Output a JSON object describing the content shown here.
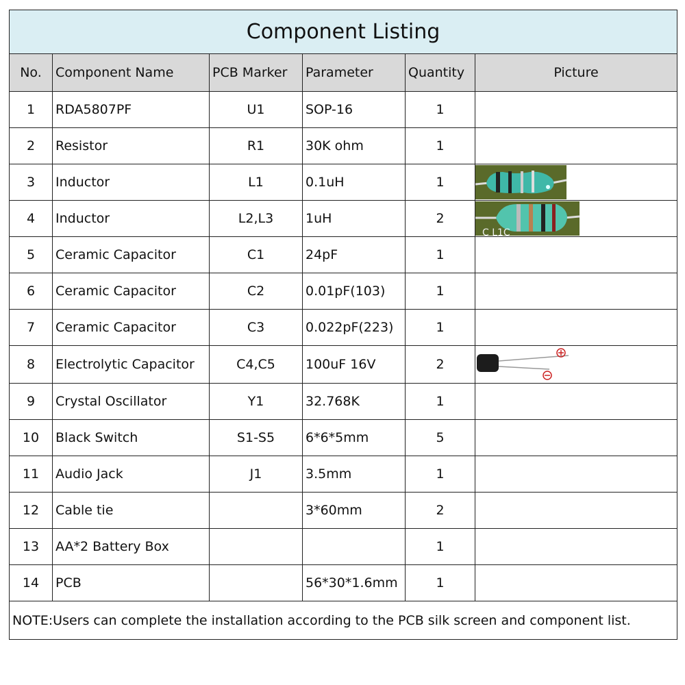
{
  "title": "Component Listing",
  "headers": [
    "No.",
    "Component Name",
    "PCB Marker",
    "Parameter",
    "Quantity",
    "Picture"
  ],
  "rows": [
    {
      "no": "1",
      "name": "RDA5807PF",
      "marker": "U1",
      "param": "SOP-16",
      "qty": "1",
      "picture": ""
    },
    {
      "no": "2",
      "name": "Resistor",
      "marker": "R1",
      "param": "30K ohm",
      "qty": "1",
      "picture": ""
    },
    {
      "no": "3",
      "name": "Inductor",
      "marker": "L1",
      "param": "0.1uH",
      "qty": "1",
      "picture": "inductor-photo"
    },
    {
      "no": "4",
      "name": "Inductor",
      "marker": "L2,L3",
      "param": "1uH",
      "qty": "2",
      "picture": "inductor-photo"
    },
    {
      "no": "5",
      "name": "Ceramic Capacitor",
      "marker": "C1",
      "param": "24pF",
      "qty": "1",
      "picture": ""
    },
    {
      "no": "6",
      "name": "Ceramic Capacitor",
      "marker": "C2",
      "param": "0.01pF(103)",
      "qty": "1",
      "picture": ""
    },
    {
      "no": "7",
      "name": "Ceramic Capacitor",
      "marker": "C3",
      "param": "0.022pF(223)",
      "qty": "1",
      "picture": ""
    },
    {
      "no": "8",
      "name": "Electrolytic Capacitor",
      "marker": "C4,C5",
      "param": "100uF 16V",
      "qty": "2",
      "picture": "capacitor-photo"
    },
    {
      "no": "9",
      "name": "Crystal Oscillator",
      "marker": "Y1",
      "param": "32.768K",
      "qty": "1",
      "picture": ""
    },
    {
      "no": "10",
      "name": "Black Switch",
      "marker": "S1-S5",
      "param": "6*6*5mm",
      "qty": "5",
      "picture": ""
    },
    {
      "no": "11",
      "name": "Audio Jack",
      "marker": "J1",
      "param": "3.5mm",
      "qty": "1",
      "picture": ""
    },
    {
      "no": "12",
      "name": "Cable tie",
      "marker": "",
      "param": "3*60mm",
      "qty": "2",
      "picture": ""
    },
    {
      "no": "13",
      "name": "AA*2 Battery Box",
      "marker": "",
      "param": "",
      "qty": "1",
      "picture": ""
    },
    {
      "no": "14",
      "name": "PCB",
      "marker": "",
      "param": "56*30*1.6mm",
      "qty": "1",
      "picture": ""
    }
  ],
  "note": "NOTE:Users can complete the installation according to the PCB silk screen and component list.",
  "colors": {
    "title_bg": "#daeef3",
    "header_bg": "#d9d9d9"
  }
}
